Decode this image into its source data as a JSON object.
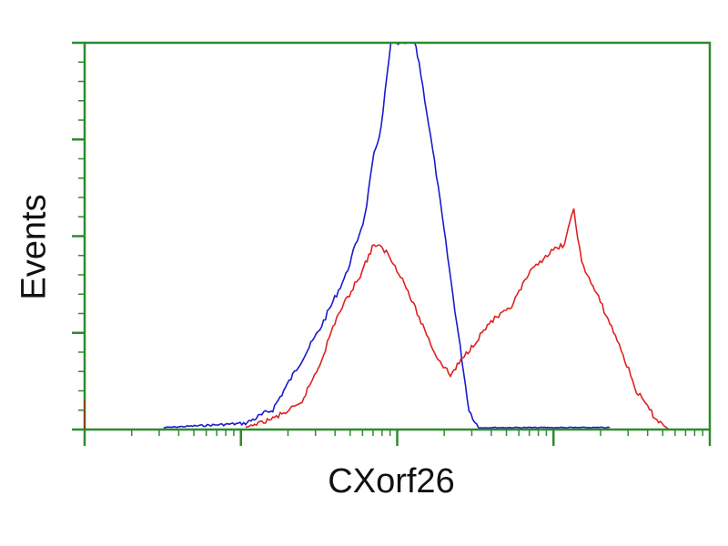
{
  "chart_data": {
    "type": "line",
    "title": "",
    "xlabel": "CXorf26",
    "ylabel": "Events",
    "x_scale": "log",
    "xlim": [
      1,
      10000
    ],
    "ylim": [
      0,
      100
    ],
    "grid": false,
    "legend": "none",
    "axis_color": "#2e8b2e",
    "series": [
      {
        "color": "#1a1acc",
        "x": [
          3.2,
          10.7,
          16,
          32,
          47,
          62,
          71,
          79,
          91,
          129,
          138,
          178,
          234,
          288,
          331,
          500,
          1000,
          2291
        ],
        "y": [
          0.5,
          1.6,
          5.2,
          26,
          40,
          55,
          71,
          78,
          100,
          100,
          95,
          66,
          31,
          5,
          0.5,
          0.5,
          0.5,
          0.5
        ]
      },
      {
        "color": "#e02020",
        "x": [
          10.7,
          16,
          24,
          32,
          41,
          58,
          71,
          85,
          105,
          138,
          178,
          219,
          269,
          398,
          525,
          692,
          891,
          1175,
          1349,
          1514,
          1995,
          2630,
          3388,
          4467,
          5495
        ],
        "y": [
          0.5,
          2.8,
          6.4,
          17,
          29,
          40,
          48,
          46,
          40,
          29,
          19,
          14,
          19,
          28,
          31,
          40,
          45,
          48,
          57,
          43,
          33,
          22,
          10,
          3,
          0
        ]
      }
    ]
  }
}
